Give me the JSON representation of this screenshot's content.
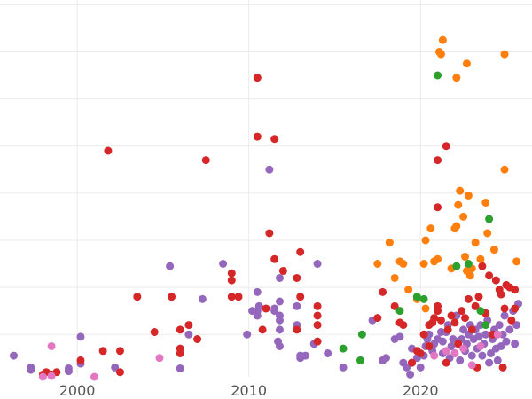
{
  "chart_data": {
    "type": "scatter",
    "title": "",
    "xlabel": "",
    "ylabel": "",
    "xlim": [
      1995.5,
      2026.5
    ],
    "ylim": [
      0.1,
      8.1
    ],
    "grid": true,
    "legend": "none",
    "x_ticks": [
      {
        "value": 2000,
        "label": "2000"
      },
      {
        "value": 2010,
        "label": "2010"
      },
      {
        "value": 2020,
        "label": "2020"
      }
    ],
    "y_gridlines": [
      1,
      2,
      3,
      4,
      5,
      6,
      7,
      8
    ],
    "series": [
      {
        "color": "#9467bd",
        "points": [
          [
            1996.3,
            0.55
          ],
          [
            1997.3,
            0.3
          ],
          [
            1997.3,
            0.25
          ],
          [
            1999.5,
            0.28
          ],
          [
            1999.5,
            0.22
          ],
          [
            2000.2,
            0.38
          ],
          [
            2000.2,
            0.95
          ],
          [
            2002.2,
            0.3
          ],
          [
            2005.4,
            2.45
          ],
          [
            2006.0,
            0.28
          ],
          [
            2006.5,
            1.0
          ],
          [
            2007.3,
            1.75
          ],
          [
            2008.5,
            2.5
          ],
          [
            2009.9,
            1.0
          ],
          [
            2010.2,
            1.5
          ],
          [
            2010.5,
            1.4
          ],
          [
            2010.5,
            1.5
          ],
          [
            2010.5,
            1.9
          ],
          [
            2010.6,
            1.6
          ],
          [
            2011.2,
            4.5
          ],
          [
            2011.5,
            1.5
          ],
          [
            2011.5,
            1.55
          ],
          [
            2011.7,
            0.85
          ],
          [
            2011.8,
            0.75
          ],
          [
            2011.8,
            1.1
          ],
          [
            2011.8,
            1.3
          ],
          [
            2011.8,
            1.4
          ],
          [
            2011.8,
            1.7
          ],
          [
            2011.8,
            2.2
          ],
          [
            2012.8,
            1.6
          ],
          [
            2012.8,
            1.2
          ],
          [
            2013.0,
            0.55
          ],
          [
            2013.0,
            0.5
          ],
          [
            2013.3,
            0.55
          ],
          [
            2013.8,
            0.8
          ],
          [
            2014.0,
            2.5
          ],
          [
            2014.6,
            0.6
          ],
          [
            2015.5,
            0.3
          ],
          [
            2017.2,
            1.3
          ],
          [
            2017.8,
            0.45
          ],
          [
            2018.0,
            0.5
          ],
          [
            2018.5,
            0.9
          ],
          [
            2018.8,
            0.95
          ],
          [
            2019.0,
            0.4
          ],
          [
            2019.2,
            0.3
          ],
          [
            2019.4,
            0.15
          ],
          [
            2019.5,
            0.4
          ],
          [
            2019.5,
            0.7
          ],
          [
            2019.8,
            0.5
          ],
          [
            2020.0,
            0.3
          ],
          [
            2020.2,
            0.55
          ],
          [
            2020.3,
            0.75
          ],
          [
            2020.4,
            0.9
          ],
          [
            2020.5,
            1.0
          ],
          [
            2020.7,
            0.65
          ],
          [
            2020.8,
            0.8
          ],
          [
            2021.0,
            0.9
          ],
          [
            2021.2,
            1.05
          ],
          [
            2021.3,
            0.6
          ],
          [
            2021.3,
            0.85
          ],
          [
            2021.5,
            1.05
          ],
          [
            2021.6,
            1.2
          ],
          [
            2021.7,
            0.5
          ],
          [
            2021.8,
            0.75
          ],
          [
            2021.9,
            0.9
          ],
          [
            2022.0,
            0.6
          ],
          [
            2022.1,
            1.4
          ],
          [
            2022.2,
            0.85
          ],
          [
            2022.3,
            0.45
          ],
          [
            2022.4,
            0.9
          ],
          [
            2022.5,
            1.1
          ],
          [
            2022.6,
            0.65
          ],
          [
            2022.7,
            0.8
          ],
          [
            2022.8,
            1.0
          ],
          [
            2022.9,
            1.2
          ],
          [
            2023.0,
            0.55
          ],
          [
            2023.1,
            0.9
          ],
          [
            2023.2,
            1.1
          ],
          [
            2023.3,
            0.7
          ],
          [
            2023.4,
            0.95
          ],
          [
            2023.5,
            1.2
          ],
          [
            2023.6,
            0.55
          ],
          [
            2023.7,
            0.8
          ],
          [
            2023.8,
            1.0
          ],
          [
            2023.9,
            1.3
          ],
          [
            2024.0,
            0.4
          ],
          [
            2024.1,
            0.6
          ],
          [
            2024.2,
            0.9
          ],
          [
            2024.3,
            1.1
          ],
          [
            2024.4,
            0.7
          ],
          [
            2024.5,
            0.45
          ],
          [
            2024.6,
            1.2
          ],
          [
            2024.7,
            0.75
          ],
          [
            2024.8,
            1.0
          ],
          [
            2024.9,
            1.4
          ],
          [
            2025.0,
            0.85
          ],
          [
            2025.2,
            1.1
          ],
          [
            2025.4,
            1.5
          ],
          [
            2025.5,
            0.8
          ],
          [
            2025.6,
            1.2
          ],
          [
            2025.7,
            1.65
          ]
        ]
      },
      {
        "color": "#d62728",
        "points": [
          [
            1998.0,
            0.15
          ],
          [
            1998.2,
            0.2
          ],
          [
            1998.5,
            0.15
          ],
          [
            1998.8,
            0.2
          ],
          [
            2000.2,
            0.45
          ],
          [
            2001.5,
            0.65
          ],
          [
            2001.8,
            4.9
          ],
          [
            2002.5,
            0.65
          ],
          [
            2002.5,
            0.2
          ],
          [
            2003.5,
            1.8
          ],
          [
            2004.5,
            1.05
          ],
          [
            2005.5,
            1.8
          ],
          [
            2006.0,
            0.6
          ],
          [
            2006.0,
            0.7
          ],
          [
            2006.0,
            1.1
          ],
          [
            2006.5,
            1.2
          ],
          [
            2007.0,
            0.9
          ],
          [
            2007.5,
            4.7
          ],
          [
            2009.0,
            2.3
          ],
          [
            2009.0,
            2.15
          ],
          [
            2009.0,
            1.8
          ],
          [
            2009.4,
            1.8
          ],
          [
            2010.5,
            5.2
          ],
          [
            2010.5,
            6.45
          ],
          [
            2010.8,
            1.1
          ],
          [
            2011.0,
            1.55
          ],
          [
            2011.2,
            3.15
          ],
          [
            2011.5,
            2.6
          ],
          [
            2011.5,
            5.15
          ],
          [
            2012.0,
            2.35
          ],
          [
            2012.8,
            2.2
          ],
          [
            2012.8,
            1.1
          ],
          [
            2013.0,
            1.8
          ],
          [
            2013.0,
            2.75
          ],
          [
            2014.0,
            1.2
          ],
          [
            2014.0,
            1.4
          ],
          [
            2014.0,
            1.6
          ],
          [
            2014.0,
            0.85
          ],
          [
            2017.5,
            1.35
          ],
          [
            2017.8,
            1.9
          ],
          [
            2018.5,
            1.6
          ],
          [
            2018.8,
            1.25
          ],
          [
            2019.0,
            1.2
          ],
          [
            2019.5,
            0.4
          ],
          [
            2019.8,
            0.65
          ],
          [
            2020.0,
            0.6
          ],
          [
            2020.2,
            1.0
          ],
          [
            2020.5,
            1.2
          ],
          [
            2020.5,
            0.75
          ],
          [
            2020.7,
            1.25
          ],
          [
            2020.8,
            1.35
          ],
          [
            2021.0,
            1.6
          ],
          [
            2021.0,
            4.7
          ],
          [
            2021.0,
            3.7
          ],
          [
            2021.0,
            1.5
          ],
          [
            2021.2,
            1.3
          ],
          [
            2021.5,
            5.0
          ],
          [
            2021.5,
            0.4
          ],
          [
            2021.6,
            1.1
          ],
          [
            2021.8,
            1.4
          ],
          [
            2022.0,
            1.25
          ],
          [
            2022.2,
            0.8
          ],
          [
            2022.4,
            1.5
          ],
          [
            2022.6,
            1.35
          ],
          [
            2022.8,
            1.75
          ],
          [
            2023.0,
            1.1
          ],
          [
            2023.2,
            1.6
          ],
          [
            2023.4,
            1.8
          ],
          [
            2023.6,
            2.45
          ],
          [
            2023.8,
            1.45
          ],
          [
            2024.0,
            2.25
          ],
          [
            2024.2,
            1.0
          ],
          [
            2024.4,
            2.15
          ],
          [
            2024.6,
            1.95
          ],
          [
            2024.7,
            1.85
          ],
          [
            2024.9,
            1.55
          ],
          [
            2025.0,
            2.05
          ],
          [
            2025.2,
            2.0
          ],
          [
            2025.3,
            1.3
          ],
          [
            2025.5,
            1.95
          ],
          [
            2025.5,
            1.55
          ],
          [
            2024.8,
            0.3
          ],
          [
            2023.3,
            0.3
          ]
        ]
      },
      {
        "color": "#ff7f0e",
        "points": [
          [
            2017.5,
            2.5
          ],
          [
            2018.2,
            2.95
          ],
          [
            2018.5,
            2.2
          ],
          [
            2018.8,
            2.55
          ],
          [
            2019.0,
            2.5
          ],
          [
            2019.3,
            1.95
          ],
          [
            2019.8,
            1.75
          ],
          [
            2020.2,
            2.5
          ],
          [
            2020.3,
            3.0
          ],
          [
            2020.3,
            1.55
          ],
          [
            2020.6,
            3.25
          ],
          [
            2020.8,
            2.55
          ],
          [
            2021.0,
            2.6
          ],
          [
            2021.1,
            7.0
          ],
          [
            2021.2,
            6.95
          ],
          [
            2021.3,
            7.25
          ],
          [
            2021.8,
            2.4
          ],
          [
            2022.0,
            3.25
          ],
          [
            2022.1,
            3.3
          ],
          [
            2022.2,
            3.75
          ],
          [
            2022.3,
            4.05
          ],
          [
            2022.5,
            3.5
          ],
          [
            2022.6,
            2.65
          ],
          [
            2022.7,
            2.35
          ],
          [
            2022.8,
            3.95
          ],
          [
            2022.9,
            2.25
          ],
          [
            2023.0,
            2.4
          ],
          [
            2023.2,
            2.95
          ],
          [
            2023.5,
            2.6
          ],
          [
            2023.8,
            3.8
          ],
          [
            2023.9,
            3.15
          ],
          [
            2024.3,
            2.8
          ],
          [
            2024.9,
            6.95
          ],
          [
            2024.9,
            4.5
          ],
          [
            2025.6,
            2.55
          ],
          [
            2022.7,
            6.75
          ],
          [
            2022.1,
            6.45
          ]
        ]
      },
      {
        "color": "#2ca02c",
        "points": [
          [
            2015.5,
            0.7
          ],
          [
            2016.5,
            0.45
          ],
          [
            2016.6,
            1.0
          ],
          [
            2018.8,
            1.5
          ],
          [
            2019.8,
            1.8
          ],
          [
            2020.2,
            1.75
          ],
          [
            2021.0,
            6.5
          ],
          [
            2022.1,
            2.45
          ],
          [
            2022.8,
            2.5
          ],
          [
            2024.0,
            3.45
          ],
          [
            2023.5,
            1.5
          ],
          [
            2023.8,
            1.2
          ]
        ]
      },
      {
        "color": "#e377c2",
        "points": [
          [
            1998.0,
            0.1
          ],
          [
            1998.5,
            0.12
          ],
          [
            1998.5,
            0.75
          ],
          [
            2001.0,
            0.1
          ],
          [
            2004.8,
            0.5
          ],
          [
            2020.8,
            0.55
          ],
          [
            2021.5,
            0.65
          ],
          [
            2022.0,
            0.6
          ],
          [
            2022.5,
            0.7
          ],
          [
            2023.0,
            0.35
          ],
          [
            2023.5,
            0.75
          ],
          [
            2024.5,
            1.0
          ]
        ]
      }
    ]
  }
}
